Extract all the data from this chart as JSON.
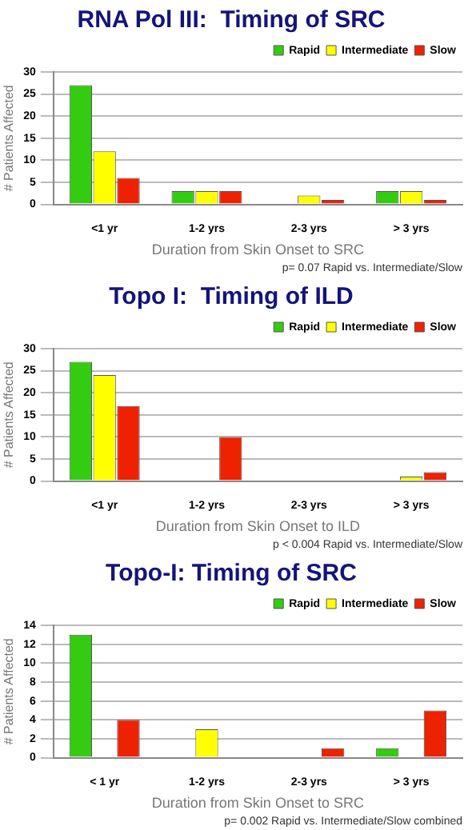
{
  "chart_data": [
    {
      "type": "bar",
      "title": "RNA Pol III:  Timing of SRC",
      "xlabel": "Duration from Skin Onset to SRC",
      "ylabel": "# Patients Affected",
      "categories": [
        "<1 yr",
        "1-2 yrs",
        "2-3 yrs",
        "> 3 yrs"
      ],
      "series": [
        {
          "name": "Rapid",
          "color": "#33cc11",
          "values": [
            27,
            3,
            0,
            3
          ]
        },
        {
          "name": "Intermediate",
          "color": "#ffff00",
          "values": [
            12,
            3,
            2,
            3
          ]
        },
        {
          "name": "Slow",
          "color": "#ee2200",
          "values": [
            6,
            3,
            1,
            1
          ]
        }
      ],
      "ylim": [
        0,
        30
      ],
      "yticks": [
        0,
        5,
        10,
        15,
        20,
        25,
        30
      ],
      "grid": "y",
      "legend": "top right",
      "annotations": [
        "p= 0.07 Rapid vs. Intermediate/Slow"
      ]
    },
    {
      "type": "bar",
      "title": "Topo I:  Timing of ILD",
      "xlabel": "Duration from Skin Onset to ILD",
      "ylabel": "# Patients Affected",
      "categories": [
        "<1 yr",
        "1-2 yrs",
        "2-3 yrs",
        "> 3 yrs"
      ],
      "series": [
        {
          "name": "Rapid",
          "color": "#33cc11",
          "values": [
            27,
            0,
            0,
            0
          ]
        },
        {
          "name": "Intermediate",
          "color": "#ffff00",
          "values": [
            24,
            0,
            0,
            1
          ]
        },
        {
          "name": "Slow",
          "color": "#ee2200",
          "values": [
            17,
            10,
            0,
            2
          ]
        }
      ],
      "ylim": [
        0,
        30
      ],
      "yticks": [
        0,
        5,
        10,
        15,
        20,
        25,
        30
      ],
      "grid": "y",
      "legend": "top right",
      "annotations": [
        "p < 0.004 Rapid vs. Intermediate/Slow"
      ]
    },
    {
      "type": "bar",
      "title": "Topo-I: Timing of SRC",
      "xlabel": "Duration from Skin Onset to SRC",
      "ylabel": "# Patients Affected",
      "categories": [
        "< 1 yr",
        "1-2 yrs",
        "2-3 yrs",
        "> 3 yrs"
      ],
      "series": [
        {
          "name": "Rapid",
          "color": "#33cc11",
          "values": [
            13,
            0,
            0,
            1
          ]
        },
        {
          "name": "Intermediate",
          "color": "#ffff00",
          "values": [
            0,
            3,
            0,
            0
          ]
        },
        {
          "name": "Slow",
          "color": "#ee2200",
          "values": [
            4,
            0,
            1,
            5
          ]
        }
      ],
      "ylim": [
        0,
        14
      ],
      "yticks": [
        0,
        2,
        4,
        6,
        8,
        10,
        12,
        14
      ],
      "grid": "y",
      "legend": "top right",
      "annotations": [
        "p= 0.002 Rapid vs. Intermediate/Slow combined"
      ]
    }
  ]
}
